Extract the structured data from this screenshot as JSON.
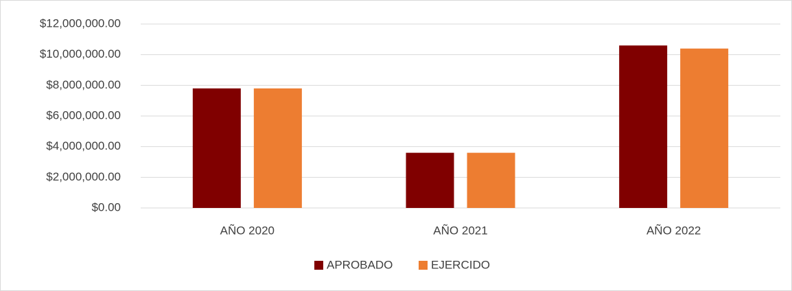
{
  "chart_data": {
    "type": "bar",
    "categories": [
      "AÑO 2020",
      "AÑO 2021",
      "AÑO 2022"
    ],
    "series": [
      {
        "name": "APROBADO",
        "color": "#800000",
        "values": [
          7800000,
          3600000,
          10600000
        ]
      },
      {
        "name": "EJERCIDO",
        "color": "#ed7d31",
        "values": [
          7800000,
          3600000,
          10400000
        ]
      }
    ],
    "ylim": [
      0,
      12000000
    ],
    "yticks": [
      {
        "value": 0,
        "label": "$0.00"
      },
      {
        "value": 2000000,
        "label": "$2,000,000.00"
      },
      {
        "value": 4000000,
        "label": "$4,000,000.00"
      },
      {
        "value": 6000000,
        "label": "$6,000,000.00"
      },
      {
        "value": 8000000,
        "label": "$8,000,000.00"
      },
      {
        "value": 10000000,
        "label": "$10,000,000.00"
      },
      {
        "value": 12000000,
        "label": "$12,000,000.00"
      }
    ],
    "grid": true,
    "legend": "bottom"
  }
}
